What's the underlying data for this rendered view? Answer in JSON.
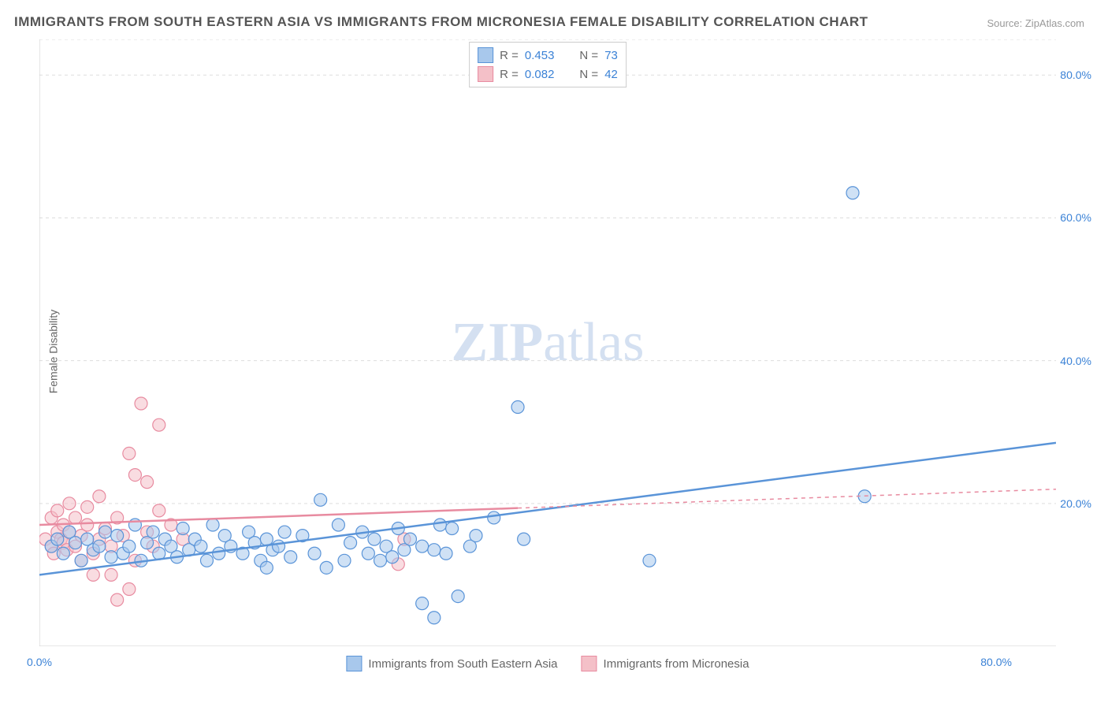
{
  "title": "IMMIGRANTS FROM SOUTH EASTERN ASIA VS IMMIGRANTS FROM MICRONESIA FEMALE DISABILITY CORRELATION CHART",
  "source_label": "Source: ZipAtlas.com",
  "ylabel": "Female Disability",
  "watermark_bold": "ZIP",
  "watermark_light": "atlas",
  "chart": {
    "type": "scatter",
    "xlim": [
      0,
      85
    ],
    "ylim": [
      0,
      85
    ],
    "x_ticks": [
      {
        "v": 0,
        "l": "0.0%"
      },
      {
        "v": 80,
        "l": "80.0%"
      }
    ],
    "y_ticks": [
      {
        "v": 20,
        "l": "20.0%"
      },
      {
        "v": 40,
        "l": "40.0%"
      },
      {
        "v": 60,
        "l": "60.0%"
      },
      {
        "v": 80,
        "l": "80.0%"
      }
    ],
    "grid_color": "#dddddd",
    "background_color": "#ffffff",
    "axis_color": "#cccccc",
    "marker_radius": 8,
    "marker_opacity": 0.55,
    "series": [
      {
        "name": "Immigrants from South Eastern Asia",
        "color_fill": "#a8c8ec",
        "color_stroke": "#5a94d8",
        "r_value": "0.453",
        "n_value": "73",
        "trend": {
          "x1": 0,
          "y1": 10,
          "x2": 85,
          "y2": 28.5,
          "solid_until_x": 85
        },
        "points": [
          [
            1,
            14
          ],
          [
            1.5,
            15
          ],
          [
            2,
            13
          ],
          [
            2.5,
            16
          ],
          [
            3,
            14.5
          ],
          [
            3.5,
            12
          ],
          [
            4,
            15
          ],
          [
            4.5,
            13.5
          ],
          [
            5,
            14
          ],
          [
            5.5,
            16
          ],
          [
            6,
            12.5
          ],
          [
            6.5,
            15.5
          ],
          [
            7,
            13
          ],
          [
            7.5,
            14
          ],
          [
            8,
            17
          ],
          [
            8.5,
            12
          ],
          [
            9,
            14.5
          ],
          [
            9.5,
            16
          ],
          [
            10,
            13
          ],
          [
            10.5,
            15
          ],
          [
            11,
            14
          ],
          [
            11.5,
            12.5
          ],
          [
            12,
            16.5
          ],
          [
            12.5,
            13.5
          ],
          [
            13,
            15
          ],
          [
            13.5,
            14
          ],
          [
            14,
            12
          ],
          [
            14.5,
            17
          ],
          [
            15,
            13
          ],
          [
            15.5,
            15.5
          ],
          [
            16,
            14
          ],
          [
            17,
            13
          ],
          [
            17.5,
            16
          ],
          [
            18,
            14.5
          ],
          [
            18.5,
            12
          ],
          [
            19,
            15
          ],
          [
            19.5,
            13.5
          ],
          [
            20,
            14
          ],
          [
            20.5,
            16
          ],
          [
            21,
            12.5
          ],
          [
            22,
            15.5
          ],
          [
            23,
            13
          ],
          [
            23.5,
            20.5
          ],
          [
            24,
            11
          ],
          [
            25,
            17
          ],
          [
            25.5,
            12
          ],
          [
            26,
            14.5
          ],
          [
            27,
            16
          ],
          [
            27.5,
            13
          ],
          [
            28,
            15
          ],
          [
            29,
            14
          ],
          [
            29.5,
            12.5
          ],
          [
            30,
            16.5
          ],
          [
            30.5,
            13.5
          ],
          [
            31,
            15
          ],
          [
            32,
            6
          ],
          [
            32,
            14
          ],
          [
            33,
            4
          ],
          [
            33.5,
            17
          ],
          [
            34,
            13
          ],
          [
            34.5,
            16.5
          ],
          [
            35,
            7
          ],
          [
            36,
            14
          ],
          [
            36.5,
            15.5
          ],
          [
            38,
            18
          ],
          [
            40,
            33.5
          ],
          [
            40.5,
            15
          ],
          [
            51,
            12
          ],
          [
            68,
            63.5
          ],
          [
            69,
            21
          ],
          [
            33,
            13.5
          ],
          [
            28.5,
            12
          ],
          [
            19,
            11
          ]
        ]
      },
      {
        "name": "Immigrants from Micronesia",
        "color_fill": "#f4c0c8",
        "color_stroke": "#e88ba0",
        "r_value": "0.082",
        "n_value": "42",
        "trend": {
          "x1": 0,
          "y1": 17,
          "x2": 85,
          "y2": 22,
          "solid_until_x": 40
        },
        "points": [
          [
            0.5,
            15
          ],
          [
            1,
            14
          ],
          [
            1,
            18
          ],
          [
            1.2,
            13
          ],
          [
            1.5,
            16
          ],
          [
            1.5,
            19
          ],
          [
            1.8,
            15
          ],
          [
            2,
            14.5
          ],
          [
            2,
            17
          ],
          [
            2.3,
            13.5
          ],
          [
            2.5,
            16
          ],
          [
            2.5,
            20
          ],
          [
            3,
            14
          ],
          [
            3,
            18
          ],
          [
            3.5,
            15.5
          ],
          [
            3.5,
            12
          ],
          [
            4,
            17
          ],
          [
            4,
            19.5
          ],
          [
            4.5,
            13
          ],
          [
            5,
            15
          ],
          [
            5,
            21
          ],
          [
            5.5,
            16.5
          ],
          [
            6,
            14
          ],
          [
            6,
            10
          ],
          [
            6.5,
            18
          ],
          [
            7,
            15.5
          ],
          [
            7.5,
            27
          ],
          [
            7.5,
            8
          ],
          [
            8,
            24
          ],
          [
            8,
            12
          ],
          [
            8.5,
            34
          ],
          [
            9,
            16
          ],
          [
            9,
            23
          ],
          [
            9.5,
            14
          ],
          [
            10,
            31
          ],
          [
            10,
            19
          ],
          [
            11,
            17
          ],
          [
            12,
            15
          ],
          [
            30,
            11.5
          ],
          [
            30.5,
            15
          ],
          [
            6.5,
            6.5
          ],
          [
            4.5,
            10
          ]
        ]
      }
    ],
    "legend_bottom": [
      {
        "swatch_fill": "#a8c8ec",
        "swatch_stroke": "#5a94d8",
        "label": "Immigrants from South Eastern Asia"
      },
      {
        "swatch_fill": "#f4c0c8",
        "swatch_stroke": "#e88ba0",
        "label": "Immigrants from Micronesia"
      }
    ]
  }
}
